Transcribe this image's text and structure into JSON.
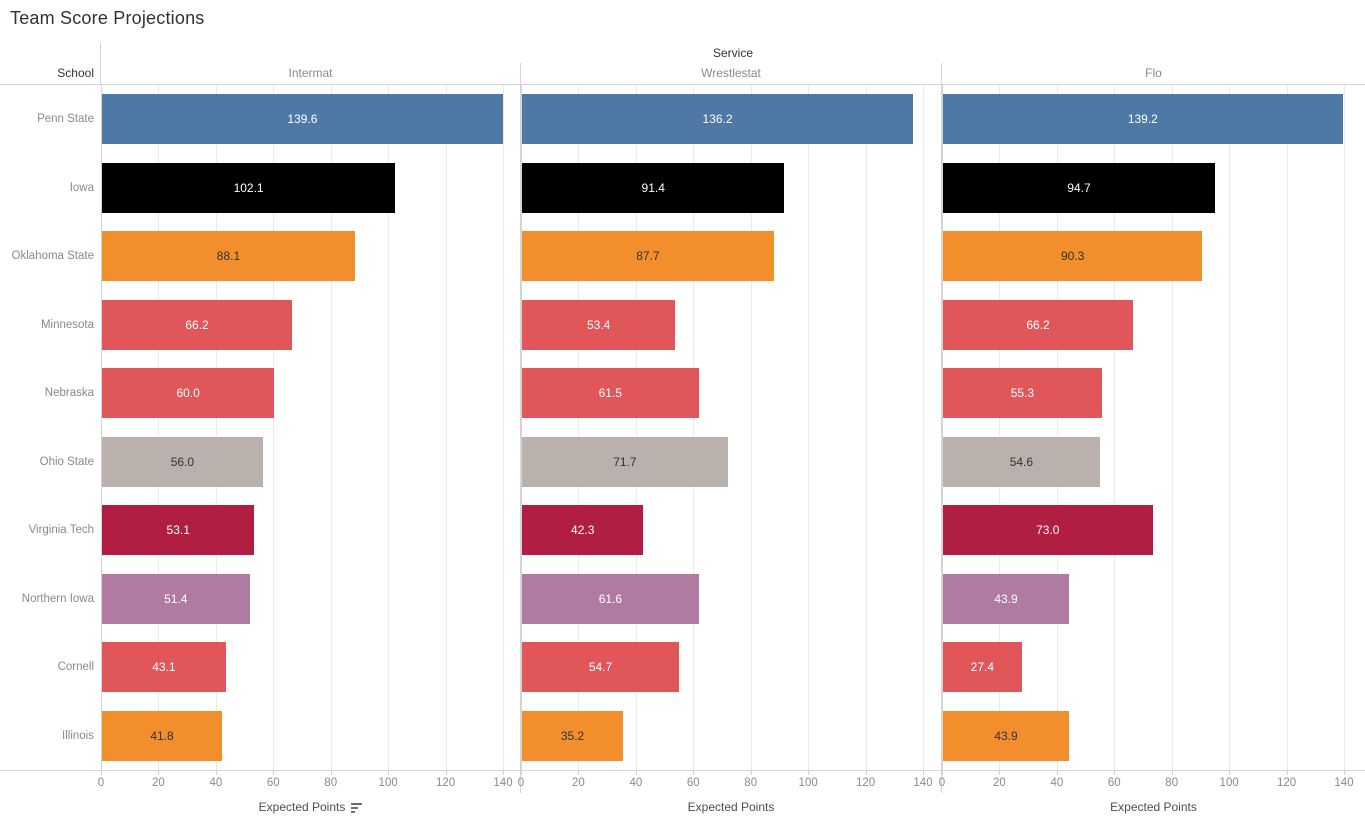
{
  "title": "Team Score Projections",
  "header": {
    "service_label": "Service",
    "school_label": "School"
  },
  "axis": {
    "title": "Expected Points",
    "ticks": [
      0,
      20,
      40,
      60,
      80,
      100,
      120,
      140
    ],
    "sort_icon": "sort-descending-icon"
  },
  "colors": {
    "light_label": "#ffffff",
    "dark_label": "#333333",
    "blue": "#4e79a7",
    "black": "#000000",
    "orange": "#f28e2b",
    "red": "#e15759",
    "gray": "#bab0ac",
    "maroon": "#b01e41",
    "purple": "#b07aa1"
  },
  "chart_data": {
    "type": "bar",
    "orientation": "horizontal",
    "title": "Team Score Projections",
    "xlabel": "Expected Points",
    "xlim": [
      0,
      140
    ],
    "grid": "vertical",
    "column_header": "Service",
    "row_header": "School",
    "categories": [
      "Penn State",
      "Iowa",
      "Oklahoma State",
      "Minnesota",
      "Nebraska",
      "Ohio State",
      "Virginia Tech",
      "Northern Iowa",
      "Cornell",
      "Illinois"
    ],
    "category_colors": [
      "#4e79a7",
      "#000000",
      "#f28e2b",
      "#e15759",
      "#e15759",
      "#bab0ac",
      "#b01e41",
      "#b07aa1",
      "#e15759",
      "#f28e2b"
    ],
    "category_label_styles": [
      "light",
      "light",
      "dark",
      "light",
      "light",
      "dark",
      "light",
      "light",
      "light",
      "dark"
    ],
    "series": [
      {
        "name": "Intermat",
        "values": [
          139.6,
          102.1,
          88.1,
          66.2,
          60.0,
          56.0,
          53.1,
          51.4,
          43.1,
          41.8
        ]
      },
      {
        "name": "Wrestlestat",
        "values": [
          136.2,
          91.4,
          87.7,
          53.4,
          61.5,
          71.7,
          42.3,
          61.6,
          54.7,
          35.2
        ]
      },
      {
        "name": "Flo",
        "values": [
          139.2,
          94.7,
          90.3,
          66.2,
          55.3,
          54.6,
          73.0,
          43.9,
          27.4,
          43.9
        ]
      }
    ]
  }
}
